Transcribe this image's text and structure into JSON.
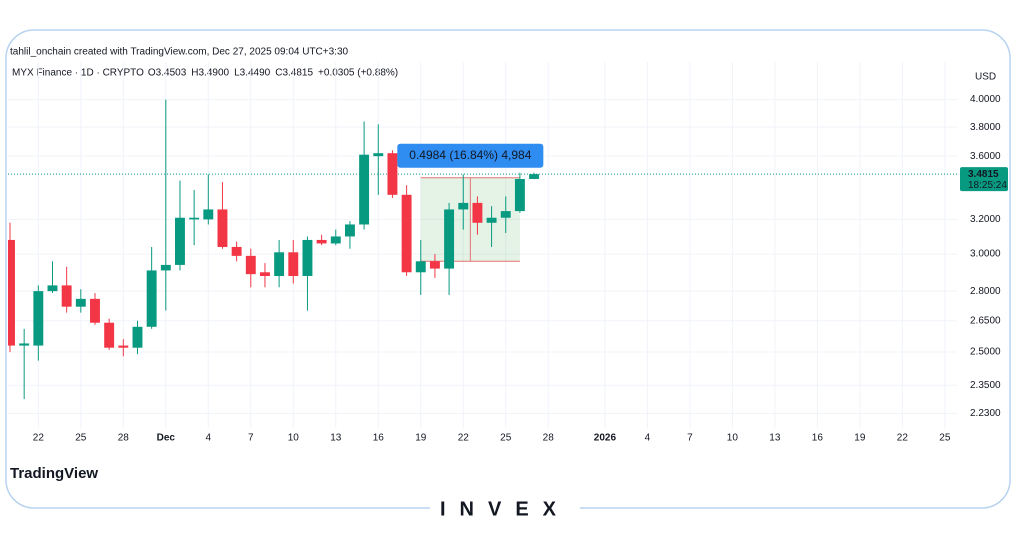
{
  "header": {
    "credit": "tahlil_onchain created with TradingView.com, Dec 27, 2025 09:04 UTC+3:30",
    "symbol": "MYX Finance · 1D · CRYPTO",
    "ohlc": [
      "O3.4503",
      "H3.4900",
      "L3.4490",
      "C3.4815",
      "+0.0305 (+0.88%)"
    ]
  },
  "chart_data": {
    "type": "candlestick",
    "currency": "USD",
    "log_scale": true,
    "grid": true,
    "up_color": "#089981",
    "down_color": "#f23645",
    "xlim": [
      "2025-11-20",
      "2026-01-26"
    ],
    "ylim": [
      2.17,
      4.29
    ],
    "yticks": [
      {
        "value": 2.23,
        "label": "2.2300"
      },
      {
        "value": 2.35,
        "label": "2.3500"
      },
      {
        "value": 2.5,
        "label": "2.5000"
      },
      {
        "value": 2.65,
        "label": "2.6500"
      },
      {
        "value": 2.8,
        "label": "2.8000"
      },
      {
        "value": 3.0,
        "label": "3.0000"
      },
      {
        "value": 3.2,
        "label": "3.2000"
      },
      {
        "value": 3.6,
        "label": "3.6000"
      },
      {
        "value": 3.8,
        "label": "3.8000"
      },
      {
        "value": 4.0,
        "label": "4.0000"
      }
    ],
    "xticks": [
      {
        "value": "2025-11-22",
        "label": "22"
      },
      {
        "value": "2025-11-25",
        "label": "25"
      },
      {
        "value": "2025-11-28",
        "label": "28"
      },
      {
        "value": "2025-12-01",
        "label": "Dec"
      },
      {
        "value": "2025-12-04",
        "label": "4"
      },
      {
        "value": "2025-12-07",
        "label": "7"
      },
      {
        "value": "2025-12-10",
        "label": "10"
      },
      {
        "value": "2025-12-13",
        "label": "13"
      },
      {
        "value": "2025-12-16",
        "label": "16"
      },
      {
        "value": "2025-12-19",
        "label": "19"
      },
      {
        "value": "2025-12-22",
        "label": "22"
      },
      {
        "value": "2025-12-25",
        "label": "25"
      },
      {
        "value": "2025-12-28",
        "label": "28"
      },
      {
        "value": "2026-01-01",
        "label": "2026"
      },
      {
        "value": "2026-01-04",
        "label": "4"
      },
      {
        "value": "2026-01-07",
        "label": "7"
      },
      {
        "value": "2026-01-10",
        "label": "10"
      },
      {
        "value": "2026-01-13",
        "label": "13"
      },
      {
        "value": "2026-01-16",
        "label": "16"
      },
      {
        "value": "2026-01-19",
        "label": "19"
      },
      {
        "value": "2026-01-22",
        "label": "22"
      },
      {
        "value": "2026-01-25",
        "label": "25"
      }
    ],
    "candles": {
      "x": [
        "2025-11-20",
        "2025-11-21",
        "2025-11-22",
        "2025-11-23",
        "2025-11-24",
        "2025-11-25",
        "2025-11-26",
        "2025-11-27",
        "2025-11-28",
        "2025-11-29",
        "2025-11-30",
        "2025-12-01",
        "2025-12-02",
        "2025-12-03",
        "2025-12-04",
        "2025-12-05",
        "2025-12-06",
        "2025-12-07",
        "2025-12-08",
        "2025-12-09",
        "2025-12-10",
        "2025-12-11",
        "2025-12-12",
        "2025-12-13",
        "2025-12-14",
        "2025-12-15",
        "2025-12-16",
        "2025-12-17",
        "2025-12-18",
        "2025-12-19",
        "2025-12-20",
        "2025-12-21",
        "2025-12-22",
        "2025-12-23",
        "2025-12-24",
        "2025-12-25",
        "2025-12-26",
        "2025-12-27"
      ],
      "open": [
        3.08,
        2.53,
        2.53,
        2.8,
        2.83,
        2.72,
        2.76,
        2.64,
        2.53,
        2.52,
        2.62,
        2.91,
        2.94,
        3.2,
        3.2,
        3.26,
        3.04,
        2.99,
        2.9,
        2.88,
        3.01,
        2.88,
        3.08,
        3.06,
        3.1,
        3.17,
        3.6,
        3.62,
        3.35,
        2.9,
        2.96,
        2.92,
        3.26,
        3.3,
        3.18,
        3.21,
        3.25,
        3.4503
      ],
      "high": [
        3.18,
        2.61,
        2.83,
        2.96,
        2.93,
        2.81,
        2.79,
        2.66,
        2.56,
        2.65,
        3.04,
        4.0,
        3.44,
        3.38,
        3.48,
        3.43,
        3.07,
        3.03,
        2.95,
        3.08,
        3.08,
        3.1,
        3.11,
        3.14,
        3.19,
        3.84,
        3.82,
        3.64,
        3.41,
        3.08,
        3.0,
        3.3,
        3.48,
        3.34,
        3.28,
        3.34,
        3.49,
        3.49
      ],
      "low": [
        2.5,
        2.29,
        2.46,
        2.79,
        2.69,
        2.69,
        2.63,
        2.51,
        2.48,
        2.49,
        2.61,
        2.7,
        2.91,
        3.05,
        3.17,
        3.03,
        2.96,
        2.82,
        2.82,
        2.82,
        2.84,
        2.7,
        3.05,
        3.05,
        3.03,
        3.14,
        3.35,
        3.33,
        2.88,
        2.78,
        2.87,
        2.78,
        3.14,
        3.11,
        3.04,
        3.12,
        3.24,
        3.449
      ],
      "close": [
        2.53,
        2.54,
        2.8,
        2.83,
        2.72,
        2.76,
        2.64,
        2.52,
        2.52,
        2.62,
        2.91,
        2.94,
        3.21,
        3.21,
        3.26,
        3.04,
        2.99,
        2.89,
        2.88,
        3.01,
        2.88,
        3.08,
        3.06,
        3.1,
        3.17,
        3.61,
        3.62,
        3.35,
        2.9,
        2.96,
        2.92,
        3.26,
        3.3,
        3.18,
        3.21,
        3.25,
        3.45,
        3.4815
      ]
    },
    "last_price": 3.4815,
    "countdown": "18:25:24",
    "measure": {
      "label": "0.4984 (16.84%) 4,984",
      "from": "2025-12-19",
      "to": "2025-12-26",
      "low": 2.96,
      "high": 3.4584
    }
  },
  "footer": {
    "logo": "TradingView",
    "brand": "INVEX"
  }
}
